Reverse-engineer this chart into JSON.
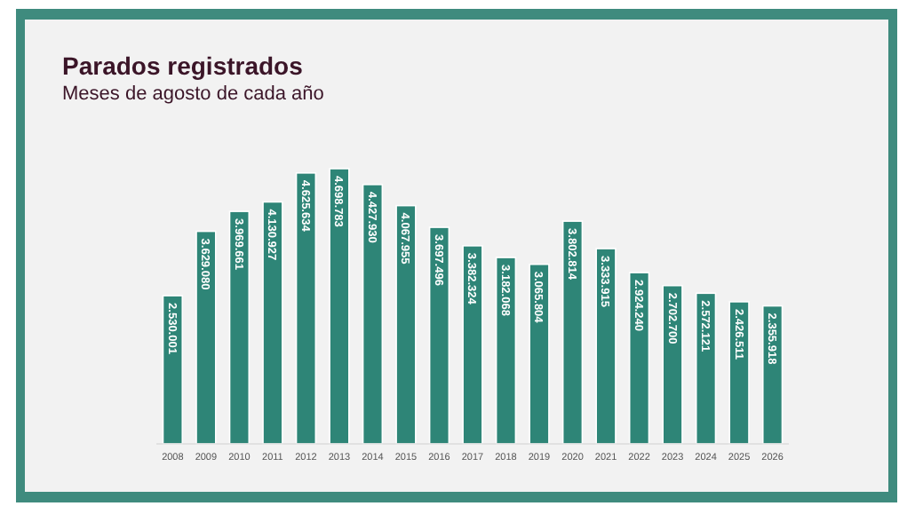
{
  "chart_data": {
    "type": "bar",
    "title": "Parados registrados",
    "subtitle": "Meses de agosto de cada año",
    "categories": [
      "2008",
      "2009",
      "2010",
      "2011",
      "2012",
      "2013",
      "2014",
      "2015",
      "2016",
      "2017",
      "2018",
      "2019",
      "2020",
      "2021",
      "2022",
      "2023",
      "2024",
      "2025",
      "2026"
    ],
    "values": [
      2530001,
      3629080,
      3969661,
      4130927,
      4625634,
      4698783,
      4427930,
      4067955,
      3697496,
      3382324,
      3182068,
      3065804,
      3802814,
      3333915,
      2924240,
      2702700,
      2572121,
      2426511,
      2355918
    ],
    "value_labels": [
      "2.530.001",
      "3.629.080",
      "3.969.661",
      "4.130.927",
      "4.625.634",
      "4.698.783",
      "4.427.930",
      "4.067.955",
      "3.697.496",
      "3.382.324",
      "3.182.068",
      "3.065.804",
      "3.802.814",
      "3.333.915",
      "2.924.240",
      "2.702.700",
      "2.572.121",
      "2.426.511",
      "2.355.918"
    ],
    "color": "#2e8577",
    "tick_labels": "x"
  }
}
